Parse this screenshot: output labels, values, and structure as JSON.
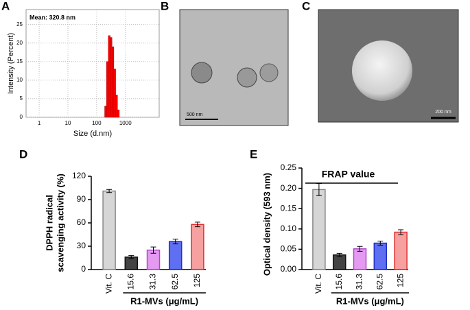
{
  "panel_labels": [
    "A",
    "B",
    "C",
    "D",
    "E"
  ],
  "images": [
    {
      "scale_bar": "500 nm"
    },
    {
      "scale_bar": "200 nm"
    }
  ],
  "chart_data": [
    {
      "type": "histogram",
      "annotation": "Mean: 320.8 nm",
      "xlabel": "Size (d.nm)",
      "ylabel": "Intensity (Percent)",
      "bins": [
        190,
        220,
        255,
        295,
        342,
        396,
        459,
        531,
        615
      ],
      "values": [
        3,
        15,
        22,
        21.5,
        19,
        13,
        6,
        2
      ],
      "color": "#ff0000",
      "log_x": true,
      "grid": true,
      "xlim": [
        0.35,
        15000
      ],
      "xticks": [
        1,
        10,
        100,
        1000
      ],
      "ylim": [
        0,
        29
      ],
      "yticks": [
        0,
        5,
        10,
        15,
        20,
        25
      ]
    },
    {
      "type": "bar",
      "ylabel": [
        "DPPH radical",
        "scavenging activity (%)"
      ],
      "xlabel": "R1-MVs (μg/mL)",
      "categories": [
        "Vit. C",
        "15.6",
        "31.3",
        "62.5",
        "125"
      ],
      "values": [
        101,
        16,
        25,
        36,
        58
      ],
      "errors": [
        2,
        2,
        4,
        3,
        3
      ],
      "colors": [
        "#d6d6d6",
        "#444444",
        "#e59af2",
        "#5f6ff2",
        "#f7a0a0"
      ],
      "edgecolors": [
        "#888888",
        "#111111",
        "#b048c8",
        "#2030c0",
        "#e03030"
      ],
      "ylim": [
        0,
        120
      ],
      "yticks": [
        0,
        30,
        60,
        90,
        120
      ]
    },
    {
      "type": "bar",
      "ylabel": "Optical density (593 nm)",
      "xlabel": "R1-MVs (μg/mL)",
      "annotation": "FRAP value",
      "categories": [
        "Vit. C",
        "15.6",
        "31.3",
        "62.5",
        "125"
      ],
      "values": [
        0.197,
        0.036,
        0.051,
        0.065,
        0.092
      ],
      "errors": [
        0.015,
        0.004,
        0.006,
        0.005,
        0.006
      ],
      "colors": [
        "#d6d6d6",
        "#444444",
        "#e59af2",
        "#5f6ff2",
        "#f7a0a0"
      ],
      "edgecolors": [
        "#888888",
        "#111111",
        "#b048c8",
        "#2030c0",
        "#e03030"
      ],
      "ylim": [
        0,
        0.25
      ],
      "yticks": [
        {
          "value": 0,
          "label": "0.00"
        },
        {
          "value": 0.05,
          "label": "0.05"
        },
        {
          "value": 0.1,
          "label": "0.10"
        },
        {
          "value": 0.15,
          "label": "0.15"
        },
        {
          "value": 0.2,
          "label": "0.20"
        },
        {
          "value": 0.25,
          "label": "0.25"
        }
      ]
    }
  ]
}
